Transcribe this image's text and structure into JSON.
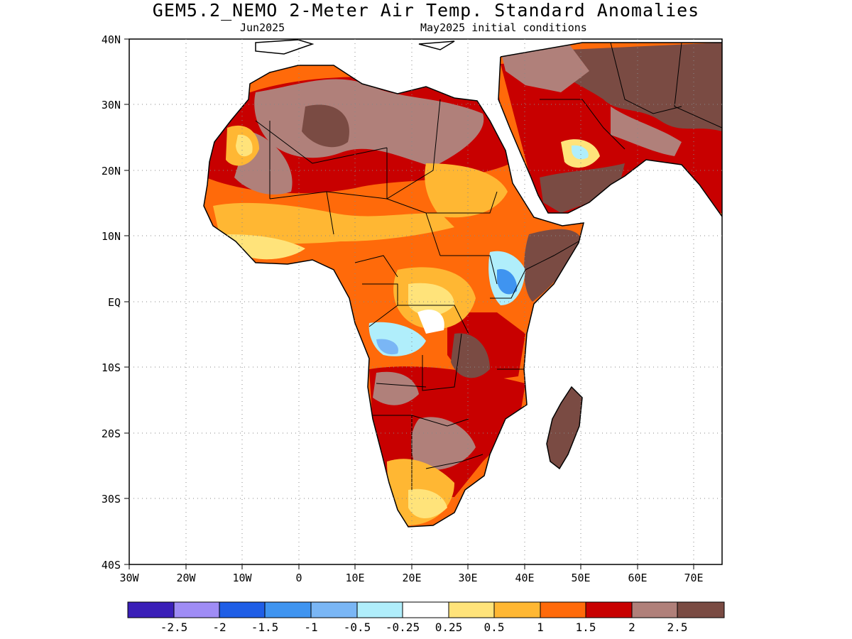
{
  "header": {
    "title": "GEM5.2_NEMO 2-Meter Air Temp. Standard Anomalies",
    "left_subtitle": "Jun2025",
    "right_subtitle": "May2025 initial conditions"
  },
  "map": {
    "lon_range": [
      -30,
      75
    ],
    "lat_range": [
      -40,
      40
    ],
    "lat_ticks": [
      {
        "value": 40,
        "label": "40N"
      },
      {
        "value": 30,
        "label": "30N"
      },
      {
        "value": 20,
        "label": "20N"
      },
      {
        "value": 10,
        "label": "10N"
      },
      {
        "value": 0,
        "label": "EQ"
      },
      {
        "value": -10,
        "label": "10S"
      },
      {
        "value": -20,
        "label": "20S"
      },
      {
        "value": -30,
        "label": "30S"
      },
      {
        "value": -40,
        "label": "40S"
      }
    ],
    "lon_ticks": [
      {
        "value": -30,
        "label": "30W"
      },
      {
        "value": -20,
        "label": "20W"
      },
      {
        "value": -10,
        "label": "10W"
      },
      {
        "value": 0,
        "label": "0"
      },
      {
        "value": 10,
        "label": "10E"
      },
      {
        "value": 20,
        "label": "20E"
      },
      {
        "value": 30,
        "label": "30E"
      },
      {
        "value": 40,
        "label": "40E"
      },
      {
        "value": 50,
        "label": "50E"
      },
      {
        "value": 60,
        "label": "60E"
      },
      {
        "value": 70,
        "label": "70E"
      }
    ],
    "grid": true
  },
  "colorbar": {
    "colors": [
      "#3a1fb8",
      "#9f8cf5",
      "#1f5ee6",
      "#3f94f0",
      "#7ab6f5",
      "#b0eefb",
      "#ffffff",
      "#ffe37a",
      "#ffb733",
      "#ff6a0a",
      "#c80000",
      "#b0807a",
      "#7a4b43"
    ],
    "labels": [
      "-2.5",
      "-2",
      "-1.5",
      "-1",
      "-0.5",
      "-0.25",
      "0.25",
      "0.5",
      "1",
      "1.5",
      "2",
      "2.5"
    ]
  },
  "anomaly_colors": {
    "strong_positive": "#7a4b43",
    "positive_2": "#b0807a",
    "positive_15": "#c80000",
    "positive_1": "#ff6a0a",
    "positive_05": "#ffb733",
    "positive_025": "#ffe37a",
    "negative_025": "#b0eefb",
    "negative_05": "#7ab6f5",
    "negative_1": "#3f94f0"
  }
}
